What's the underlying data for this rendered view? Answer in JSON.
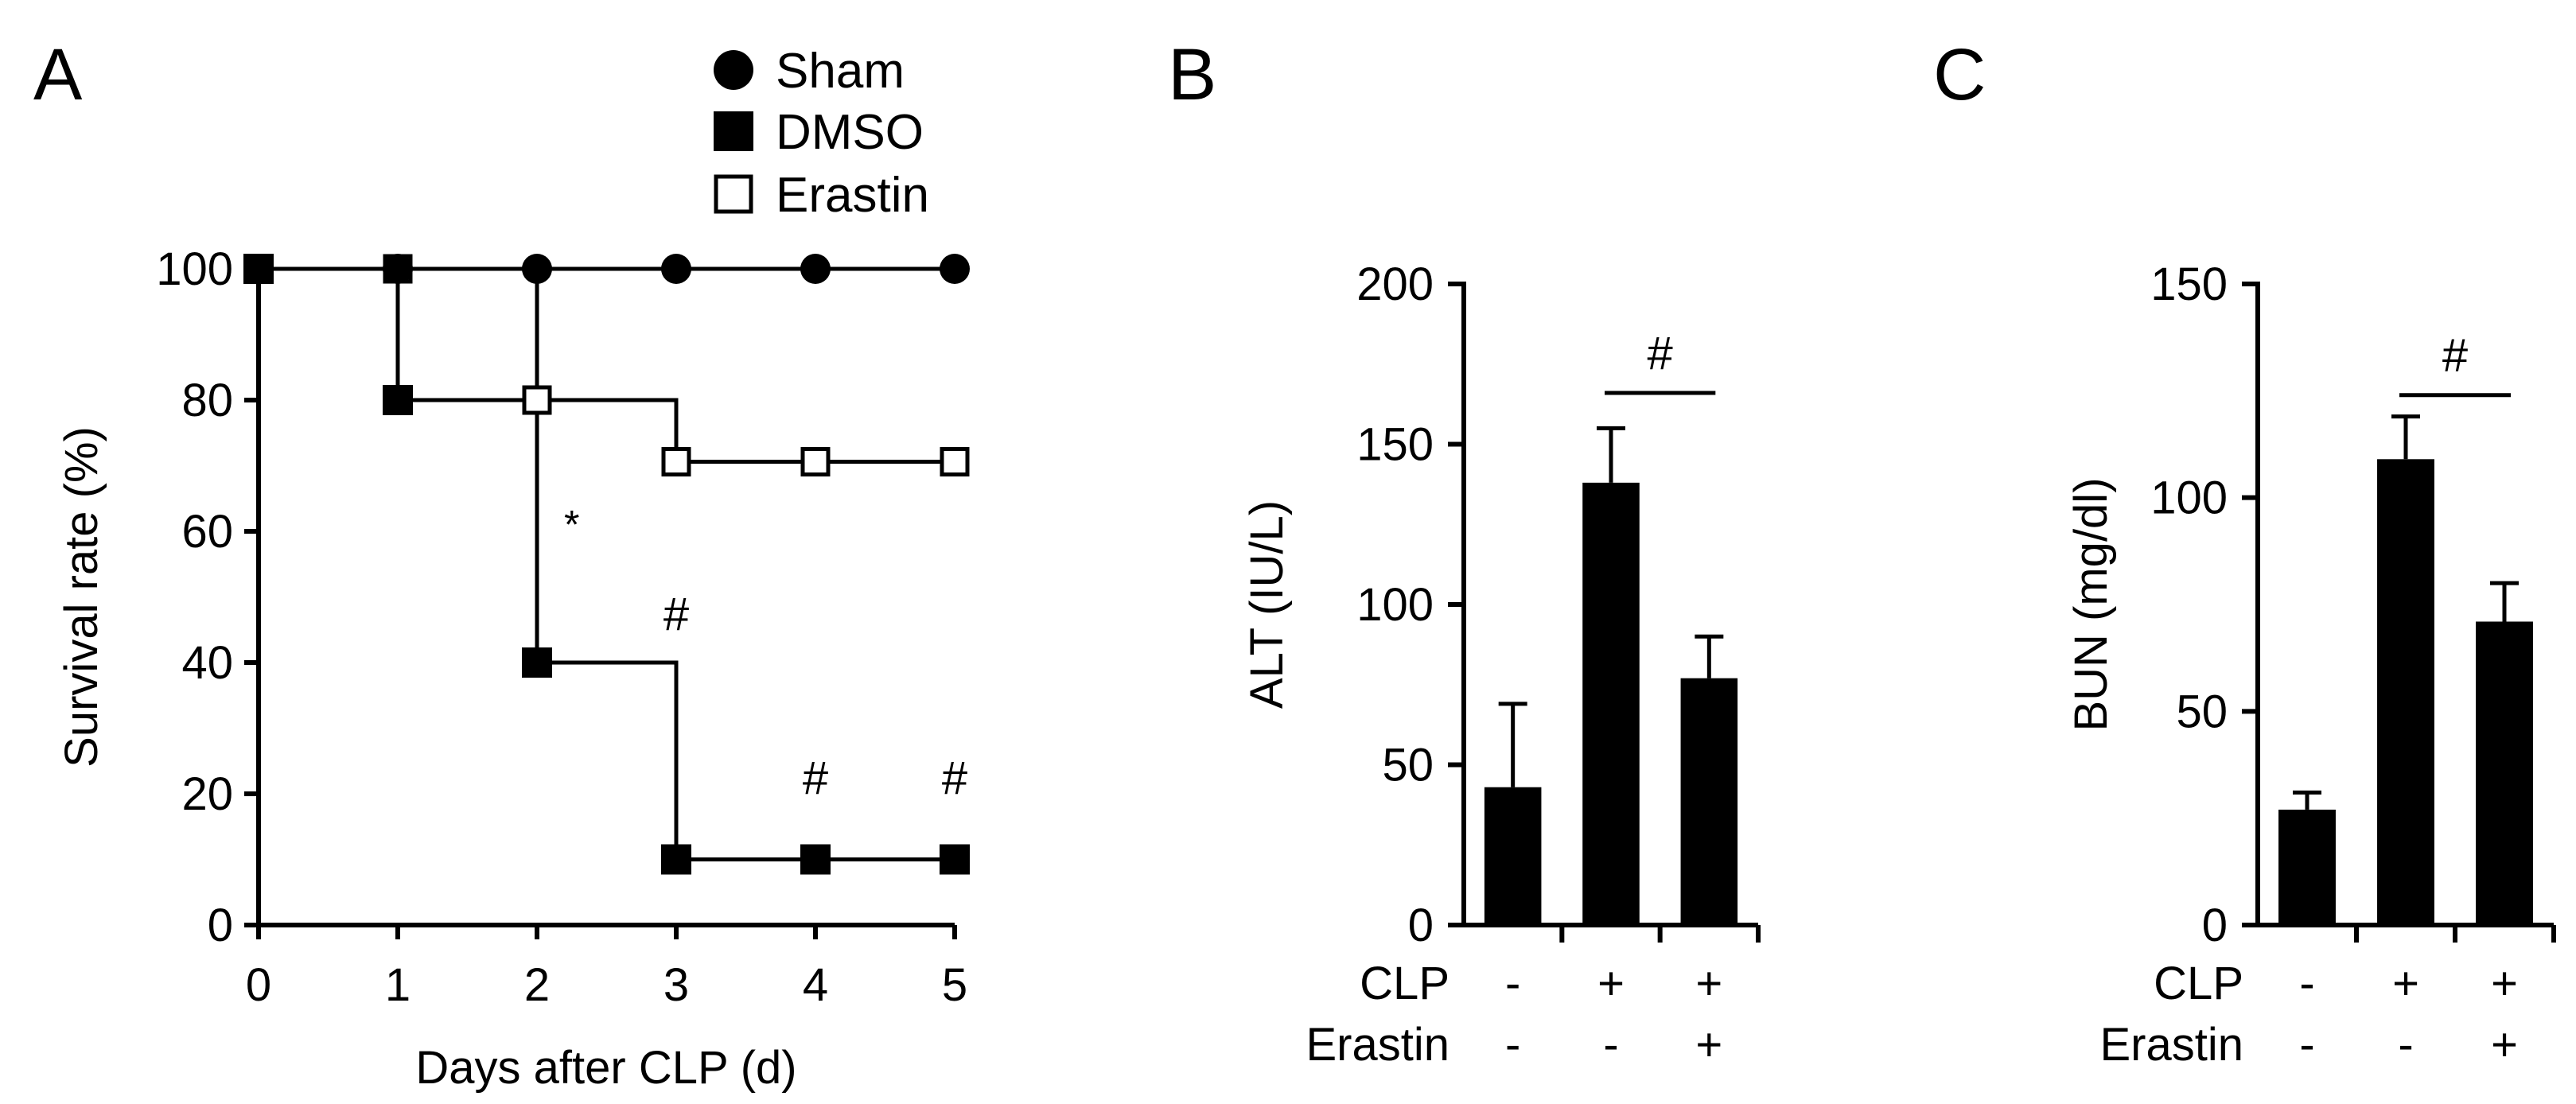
{
  "panels": {
    "a": {
      "letter": "A"
    },
    "b": {
      "letter": "B"
    },
    "c": {
      "letter": "C"
    }
  },
  "chart_data": [
    {
      "id": "A",
      "type": "line",
      "style": "step survival curve",
      "ylabel": "Survival rate (%)",
      "xlabel": "Days after CLP (d)",
      "ylim": [
        0,
        100
      ],
      "xlim": [
        0,
        5
      ],
      "x": [
        0,
        1,
        2,
        3,
        4,
        5
      ],
      "yticks": [
        0,
        20,
        40,
        60,
        80,
        100
      ],
      "legend_position": "top-right",
      "series": [
        {
          "name": "Sham",
          "marker": "filled-circle",
          "values": [
            100,
            100,
            100,
            100,
            100,
            100
          ]
        },
        {
          "name": "DMSO",
          "marker": "filled-square",
          "values": [
            100,
            80,
            40,
            10,
            10,
            10
          ]
        },
        {
          "name": "Erastin",
          "marker": "open-square",
          "values": [
            100,
            100,
            80,
            70.6,
            70.6,
            70.6
          ]
        }
      ],
      "annotations": [
        {
          "text": "*",
          "x": 2.25,
          "y": 59
        },
        {
          "text": "#",
          "x": 3,
          "y": 45
        },
        {
          "text": "#",
          "x": 4,
          "y": 20
        },
        {
          "text": "#",
          "x": 5,
          "y": 20
        }
      ]
    },
    {
      "id": "B",
      "type": "bar",
      "ylabel": "ALT (IU/L)",
      "ylim": [
        0,
        200
      ],
      "yticks": [
        0,
        50,
        100,
        150,
        200
      ],
      "row_labels": [
        "CLP",
        "Erastin"
      ],
      "categories": [
        {
          "clp": "-",
          "erastin": "-"
        },
        {
          "clp": "+",
          "erastin": "-"
        },
        {
          "clp": "+",
          "erastin": "+"
        }
      ],
      "values": [
        43,
        138,
        77
      ],
      "errors": [
        26,
        17,
        13
      ],
      "significance": {
        "text": "#",
        "from": 1,
        "to": 2,
        "y": 166
      }
    },
    {
      "id": "C",
      "type": "bar",
      "ylabel": "BUN (mg/dl)",
      "ylim": [
        0,
        150
      ],
      "yticks": [
        0,
        50,
        100,
        150
      ],
      "row_labels": [
        "CLP",
        "Erastin"
      ],
      "categories": [
        {
          "clp": "-",
          "erastin": "-"
        },
        {
          "clp": "+",
          "erastin": "-"
        },
        {
          "clp": "+",
          "erastin": "+"
        }
      ],
      "values": [
        27,
        109,
        71
      ],
      "errors": [
        4,
        10,
        9
      ],
      "significance": {
        "text": "#",
        "from": 1,
        "to": 2,
        "y": 124
      }
    }
  ]
}
